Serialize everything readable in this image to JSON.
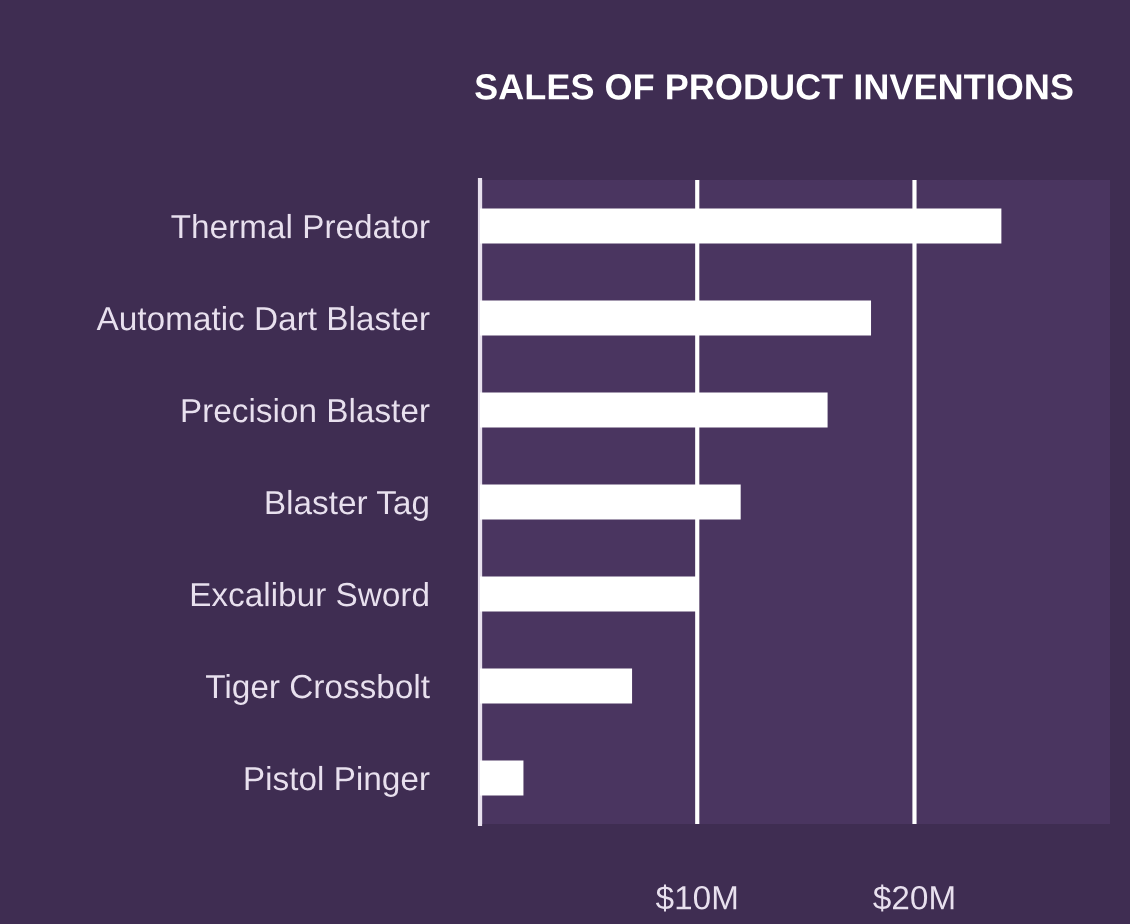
{
  "chart_data": {
    "type": "bar",
    "orientation": "horizontal",
    "title": "SALES OF PRODUCT INVENTIONS",
    "categories": [
      "Thermal Predator",
      "Automatic Dart Blaster",
      "Precision Blaster",
      "Blaster Tag",
      "Excalibur Sword",
      "Tiger Crossbolt",
      "Pistol Pinger"
    ],
    "values": [
      24,
      18,
      16,
      12,
      10,
      7,
      2
    ],
    "color": "#ffffff",
    "xlim": [
      0,
      29
    ],
    "xticks": [
      {
        "value": 0,
        "label": null
      },
      {
        "value": 10,
        "label": "$10M"
      },
      {
        "value": 20,
        "label": "$20M"
      }
    ],
    "grid": "x",
    "legend": false
  }
}
